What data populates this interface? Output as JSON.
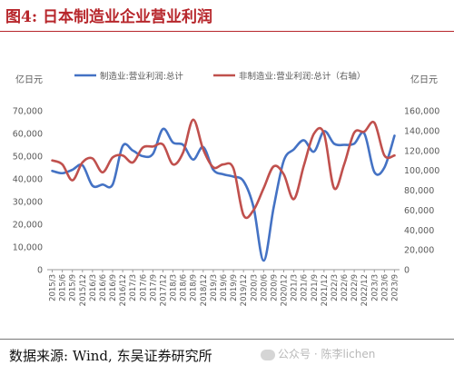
{
  "figure": {
    "title": "图4:  日本制造业企业营业利润",
    "source": "数据来源:  Wind,  东吴证券研究所",
    "watermark": "公众号 · 陈李lichen"
  },
  "colors": {
    "series1": "#4472c4",
    "series2": "#c0504d",
    "title": "#b7262b",
    "axis": "#595959"
  },
  "chart_data": {
    "type": "line",
    "left_unit": "亿日元",
    "right_unit": "亿日元",
    "left_ylim": [
      0,
      70000
    ],
    "left_ticks": [
      "0",
      "10,000",
      "20,000",
      "30,000",
      "40,000",
      "50,000",
      "60,000",
      "70,000"
    ],
    "right_ylim": [
      0,
      160000
    ],
    "right_ticks": [
      "0",
      "20,000",
      "40,000",
      "60,000",
      "80,000",
      "100,000",
      "120,000",
      "140,000",
      "160,000"
    ],
    "x_tick_labels": [
      "2015/3",
      "2015/6",
      "2015/9",
      "2015/12",
      "2016/3",
      "2016/6",
      "2016/9",
      "2016/12",
      "2017/3",
      "2017/6",
      "2017/9",
      "2017/12",
      "2018/3",
      "2018/6",
      "2018/9",
      "2018/12",
      "2019/3",
      "2019/6",
      "2019/9",
      "2019/12",
      "2020/3",
      "2020/6",
      "2020/9",
      "2020/12",
      "2021/3",
      "2021/6",
      "2021/9",
      "2021/12",
      "2022/3",
      "2022/6",
      "2022/9",
      "2022/12",
      "2023/3",
      "2023/6",
      "2023/9"
    ],
    "legend_position": "top",
    "grid": false,
    "series": [
      {
        "name": "制造业:营业利润:总计",
        "axis": "left",
        "values": [
          43500,
          42500,
          44000,
          46000,
          37000,
          37500,
          37500,
          54500,
          52500,
          50000,
          51000,
          62000,
          56000,
          55000,
          48500,
          54000,
          44000,
          42000,
          41000,
          39000,
          27500,
          4000,
          27500,
          48000,
          53000,
          57000,
          52000,
          61000,
          55500,
          55000,
          55500,
          60000,
          43000,
          45000,
          59000
        ]
      },
      {
        "name": "非制造业:营业利润:总计（右轴）",
        "axis": "right",
        "values": [
          110000,
          106000,
          90000,
          108000,
          112000,
          98000,
          113000,
          115000,
          108000,
          123000,
          124000,
          126000,
          106000,
          118000,
          151000,
          121000,
          103000,
          106000,
          102000,
          55000,
          60000,
          82000,
          104000,
          96000,
          71000,
          105000,
          137000,
          137000,
          82000,
          106000,
          138000,
          139000,
          148000,
          115000,
          115000
        ]
      }
    ]
  }
}
